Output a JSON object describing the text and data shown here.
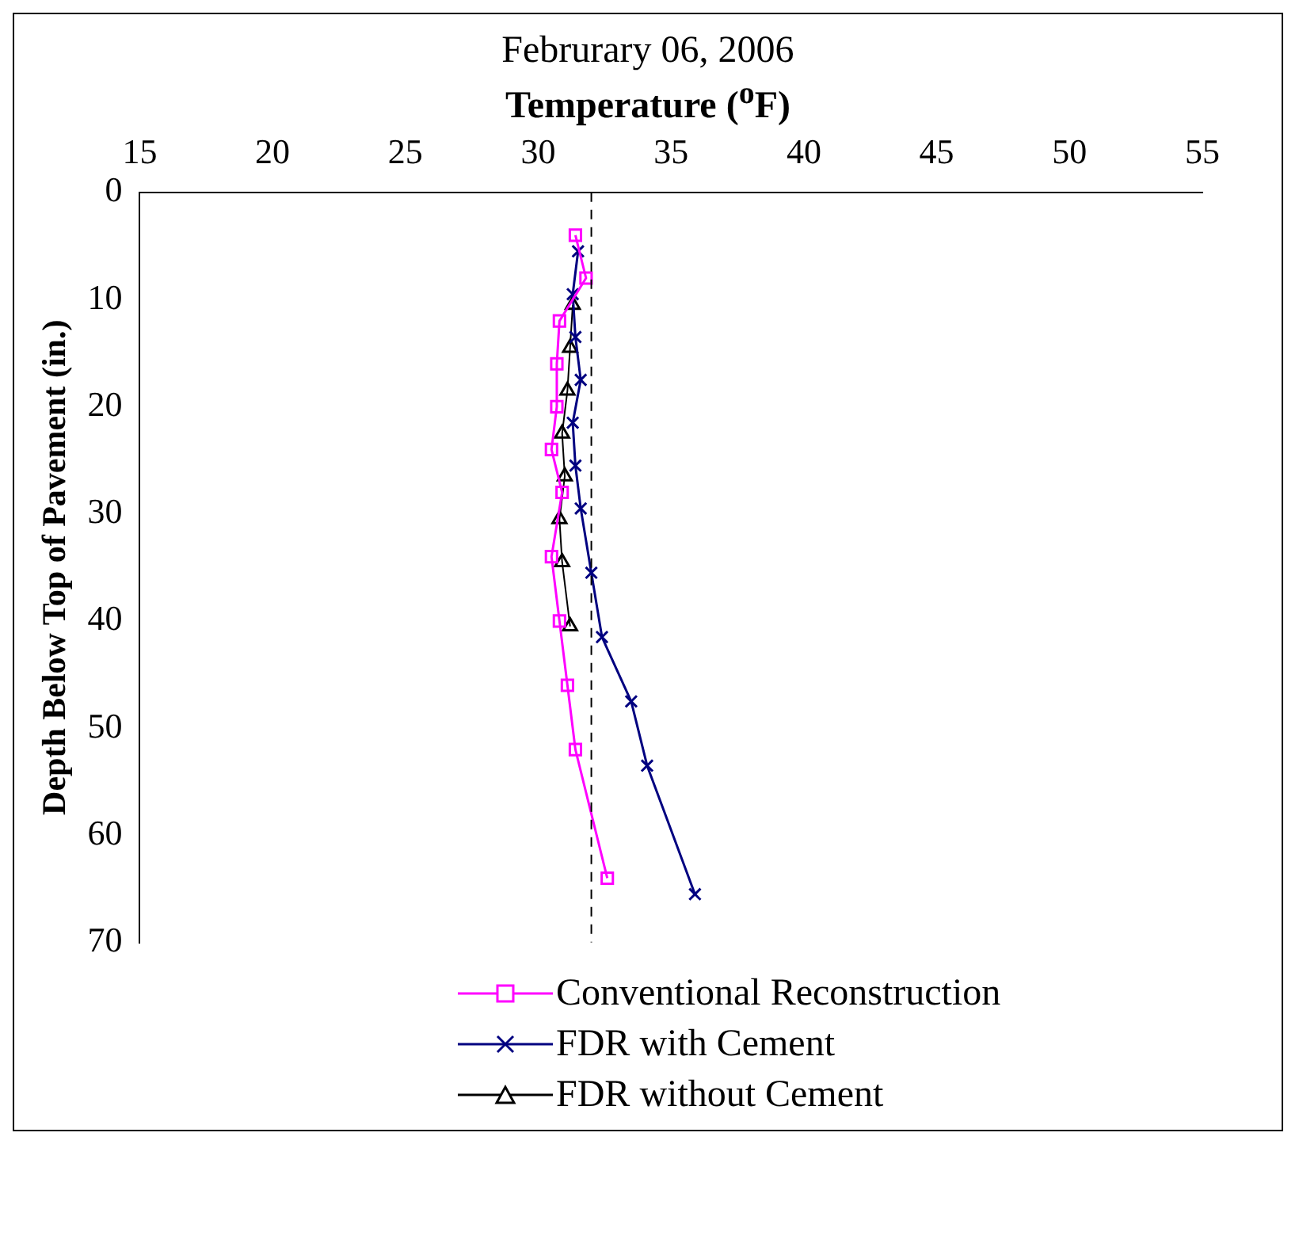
{
  "chart_data": {
    "type": "line",
    "title": "Februrary 06, 2006",
    "xlabel": "Temperature ($^{o}$F)",
    "ylabel": "Depth Below Top of Pavement (in.)",
    "xlim": [
      15,
      55
    ],
    "xticks": [
      15,
      20,
      25,
      30,
      35,
      40,
      45,
      50,
      55
    ],
    "ylim": [
      70,
      0
    ],
    "yticks": [
      0,
      10,
      20,
      30,
      40,
      50,
      60,
      70
    ],
    "grid": false,
    "legend": "bottom",
    "line_style": "solid",
    "ref_lines": [
      {
        "axis": "x",
        "value": 32,
        "line_style": "dashed",
        "color": "#000000"
      }
    ],
    "series": [
      {
        "name": "Conventional Reconstruction",
        "color": "#ff00ff",
        "marker": "square",
        "x": [
          31.4,
          31.8,
          30.8,
          30.7,
          30.7,
          30.5,
          30.9,
          30.5,
          30.8,
          31.1,
          31.4,
          32.6
        ],
        "values": [
          4,
          8,
          12,
          16,
          20,
          24,
          28,
          34,
          40,
          46,
          52,
          64
        ]
      },
      {
        "name": "FDR with Cement",
        "color": "#000080",
        "marker": "cross",
        "x": [
          31.5,
          31.3,
          31.4,
          31.6,
          31.3,
          31.4,
          31.6,
          32.0,
          32.4,
          33.5,
          34.1,
          35.9
        ],
        "values": [
          5.5,
          9.5,
          13.5,
          17.5,
          21.5,
          25.5,
          29.5,
          35.5,
          41.5,
          47.5,
          53.5,
          65.5
        ]
      },
      {
        "name": "FDR without Cement",
        "color": "#000000",
        "marker": "triangle",
        "x": [
          31.3,
          31.2,
          31.1,
          30.9,
          31.0,
          30.8,
          30.9,
          31.2
        ],
        "values": [
          10.5,
          14.5,
          18.5,
          22.5,
          26.5,
          30.5,
          34.5,
          40.5
        ]
      }
    ]
  }
}
